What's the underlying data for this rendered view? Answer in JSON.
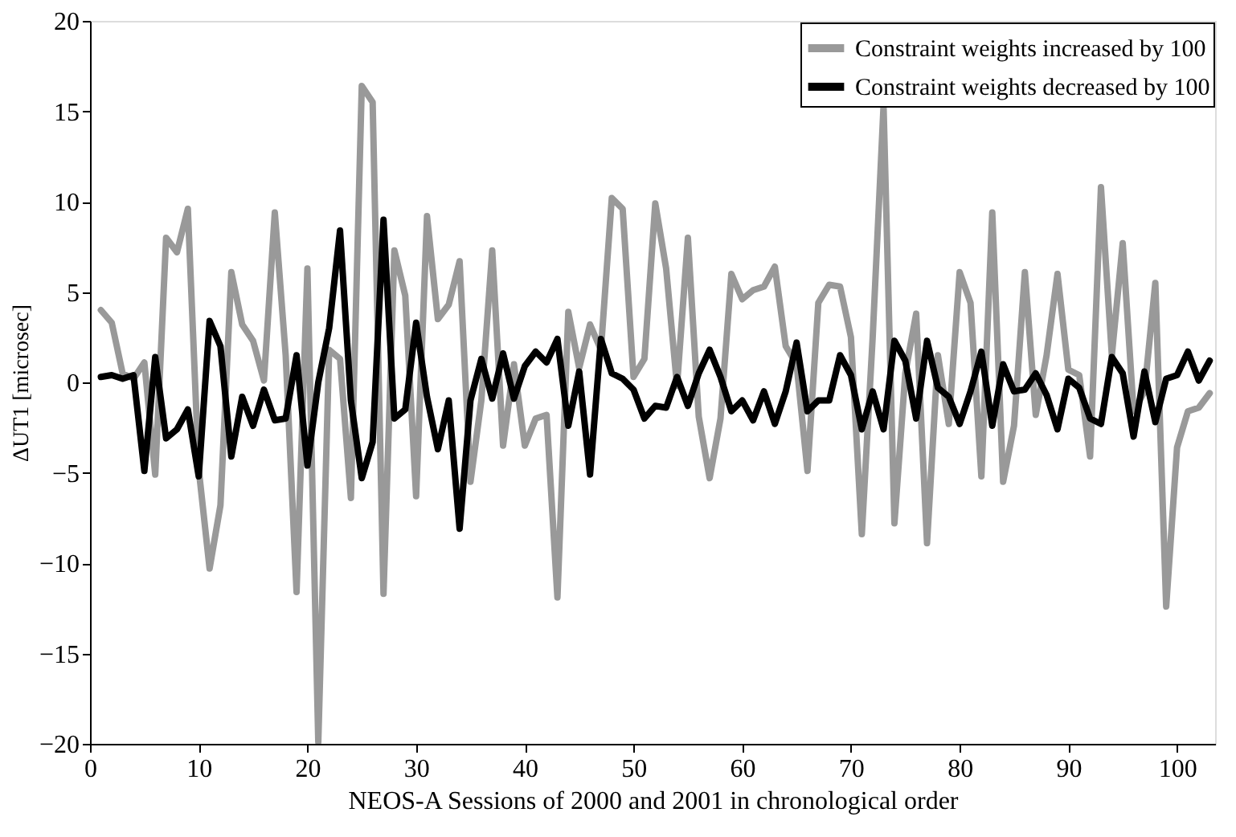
{
  "chart_data": {
    "type": "line",
    "xlabel": "NEOS-A Sessions of 2000 and 2001 in chronological order",
    "ylabel": "ΔUT1 [microsec]",
    "x": [
      1,
      2,
      3,
      4,
      5,
      6,
      7,
      8,
      9,
      10,
      11,
      12,
      13,
      14,
      15,
      16,
      17,
      18,
      19,
      20,
      21,
      22,
      23,
      24,
      25,
      26,
      27,
      28,
      29,
      30,
      31,
      32,
      33,
      34,
      35,
      36,
      37,
      38,
      39,
      40,
      41,
      42,
      43,
      44,
      45,
      46,
      47,
      48,
      49,
      50,
      51,
      52,
      53,
      54,
      55,
      56,
      57,
      58,
      59,
      60,
      61,
      62,
      63,
      64,
      65,
      66,
      67,
      68,
      69,
      70,
      71,
      72,
      73,
      74,
      75,
      76,
      77,
      78,
      79,
      80,
      81,
      82,
      83,
      84,
      85,
      86,
      87,
      88,
      89,
      90,
      91,
      92,
      93,
      94,
      95,
      96,
      97,
      98,
      99,
      100,
      101,
      102,
      103
    ],
    "series": [
      {
        "name": "Constraint weights increased by 100",
        "color": "#999999",
        "values": [
          4,
          3.3,
          0.5,
          0.2,
          1.1,
          -5.1,
          8,
          7.2,
          9.6,
          -4.8,
          -10.3,
          -6.8,
          6.1,
          3.2,
          2.3,
          0.1,
          9.4,
          1.5,
          -11.6,
          6.3,
          -19.9,
          1.8,
          1.3,
          -6.4,
          16.4,
          15.5,
          -11.7,
          7.3,
          4.8,
          -6.3,
          9.2,
          3.5,
          4.3,
          6.7,
          -5.5,
          -1,
          7.3,
          -3.5,
          1,
          -3.5,
          -2,
          -1.8,
          -11.9,
          3.9,
          0.8,
          3.2,
          1.8,
          10.2,
          9.6,
          0.3,
          1.3,
          9.9,
          6.3,
          -0.2,
          8,
          -1.9,
          -5.3,
          -2,
          6,
          4.6,
          5.1,
          5.3,
          6.4,
          2,
          1,
          -4.9,
          4.4,
          5.4,
          5.3,
          2.5,
          -8.4,
          2.5,
          15.3,
          -7.8,
          0.5,
          3.8,
          -8.9,
          1.5,
          -2.3,
          6.1,
          4.4,
          -5.2,
          9.4,
          -5.5,
          -2.4,
          6.1,
          -1.8,
          1.5,
          6,
          0.7,
          0.4,
          -4.1,
          10.8,
          1.5,
          7.7,
          -1.6,
          -0.5,
          5.5,
          -12.4,
          -3.6,
          -1.6,
          -1.4,
          -0.6
        ]
      },
      {
        "name": "Constraint weights decreased by 100",
        "color": "#000000",
        "values": [
          0.3,
          0.4,
          0.2,
          0.4,
          -4.9,
          1.4,
          -3.1,
          -2.6,
          -1.5,
          -5.2,
          3.4,
          2,
          -4.1,
          -0.8,
          -2.4,
          -0.4,
          -2.1,
          -2,
          1.5,
          -4.6,
          0,
          3,
          8.4,
          -1,
          -5.3,
          -3.3,
          9,
          -2,
          -1.5,
          3.3,
          -0.8,
          -3.7,
          -1,
          -8.1,
          -1,
          1.3,
          -0.9,
          1.6,
          -0.9,
          0.9,
          1.7,
          1.1,
          2.4,
          -2.4,
          0.6,
          -5.1,
          2.4,
          0.5,
          0.2,
          -0.4,
          -2,
          -1.3,
          -1.4,
          0.3,
          -1.3,
          0.5,
          1.8,
          0.3,
          -1.6,
          -1,
          -2.1,
          -0.5,
          -2.3,
          -0.5,
          2.2,
          -1.6,
          -1,
          -1,
          1.5,
          0.4,
          -2.6,
          -0.5,
          -2.6,
          2.3,
          1.2,
          -2,
          2.3,
          -0.3,
          -0.8,
          -2.3,
          -0.5,
          1.7,
          -2.4,
          1,
          -0.5,
          -0.4,
          0.5,
          -0.7,
          -2.6,
          0.2,
          -0.3,
          -2,
          -2.3,
          1.4,
          0.5,
          -3,
          0.6,
          -2.2,
          0.2,
          0.4,
          1.7,
          0.1,
          1.2
        ]
      }
    ],
    "xlim": [
      0,
      103.5
    ],
    "xticks": [
      0,
      10,
      20,
      30,
      40,
      50,
      60,
      70,
      80,
      90,
      100
    ],
    "ylim": [
      -20,
      20
    ],
    "yticks": [
      -20,
      -15,
      -10,
      -5,
      0,
      5,
      10,
      15,
      20
    ],
    "grid": false,
    "legend": "top right",
    "marker": "none",
    "line_style": "solid"
  }
}
